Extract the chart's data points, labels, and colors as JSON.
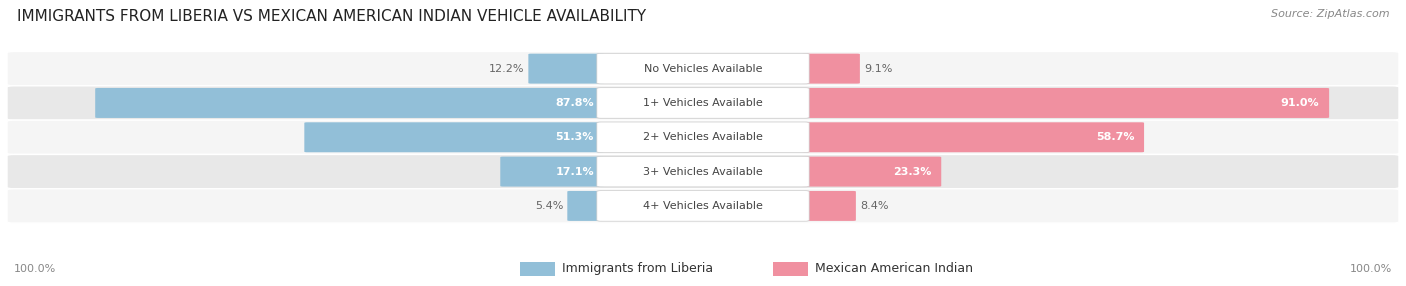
{
  "title": "IMMIGRANTS FROM LIBERIA VS MEXICAN AMERICAN INDIAN VEHICLE AVAILABILITY",
  "source": "Source: ZipAtlas.com",
  "categories": [
    "No Vehicles Available",
    "1+ Vehicles Available",
    "2+ Vehicles Available",
    "3+ Vehicles Available",
    "4+ Vehicles Available"
  ],
  "liberia_values": [
    12.2,
    87.8,
    51.3,
    17.1,
    5.4
  ],
  "mexican_values": [
    9.1,
    91.0,
    58.7,
    23.3,
    8.4
  ],
  "liberia_color": "#92BFD8",
  "mexican_color": "#F090A0",
  "liberia_label": "Immigrants from Liberia",
  "mexican_label": "Mexican American Indian",
  "row_colors": [
    "#f5f5f5",
    "#e8e8e8"
  ],
  "footer_label": "100.0%",
  "title_fontsize": 11,
  "source_fontsize": 8,
  "label_fontsize": 8,
  "value_fontsize": 8,
  "legend_fontsize": 9,
  "max_val": 100
}
